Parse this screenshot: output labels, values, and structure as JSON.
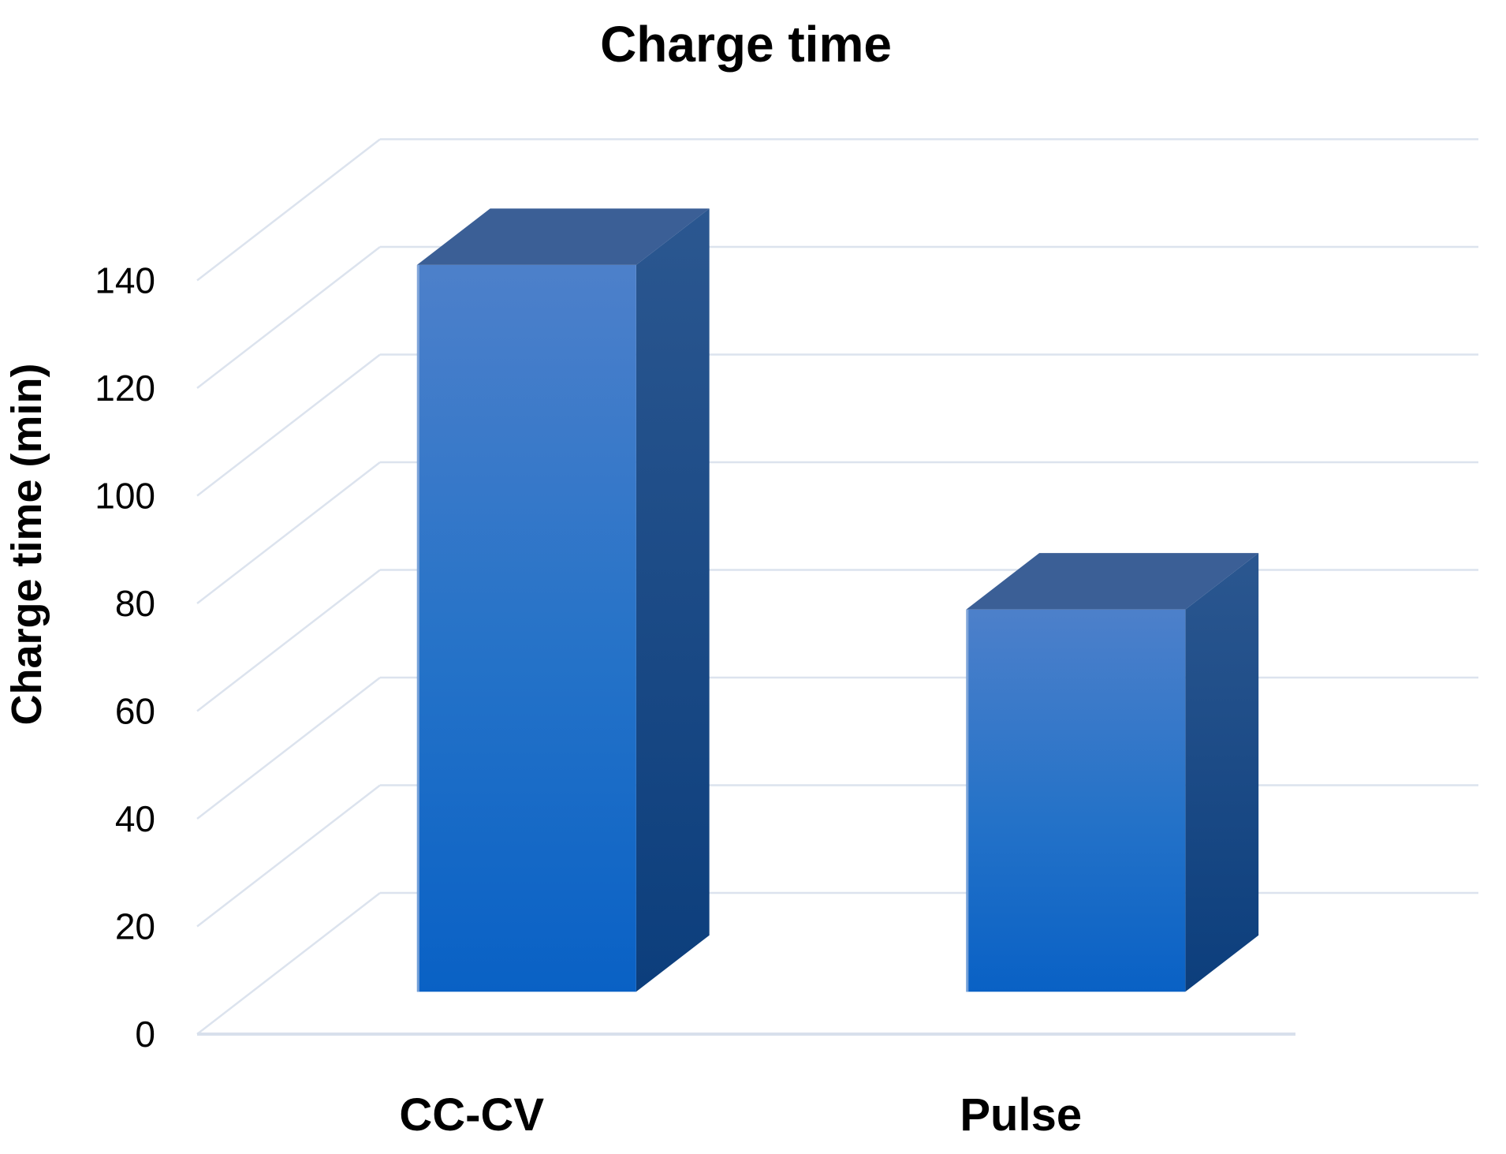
{
  "chart_data": {
    "type": "bar",
    "projection": "3d",
    "title": "Charge time",
    "ylabel": "Charge time (min)",
    "xlabel": "",
    "categories": [
      "CC-CV",
      "Pulse"
    ],
    "values": [
      135,
      71
    ],
    "yticks": [
      0,
      20,
      40,
      60,
      80,
      100,
      120,
      140
    ],
    "ylim": [
      0,
      140
    ],
    "ytick_step": 20,
    "grid": true,
    "legend": false
  },
  "colors": {
    "background": "#ffffff",
    "text": "#000000",
    "gridline": "#dce3ee",
    "floor_line": "#d8e0ec",
    "bar_front_top": "#4d80ca",
    "bar_front_mid": "#2472c8",
    "bar_front_bottom": "#0961c5",
    "bar_side_top": "#2b5790",
    "bar_side_bottom": "#0c3e7c",
    "bar_top_face": "#3b5f96",
    "bar_left_edge": "#93b2de"
  }
}
